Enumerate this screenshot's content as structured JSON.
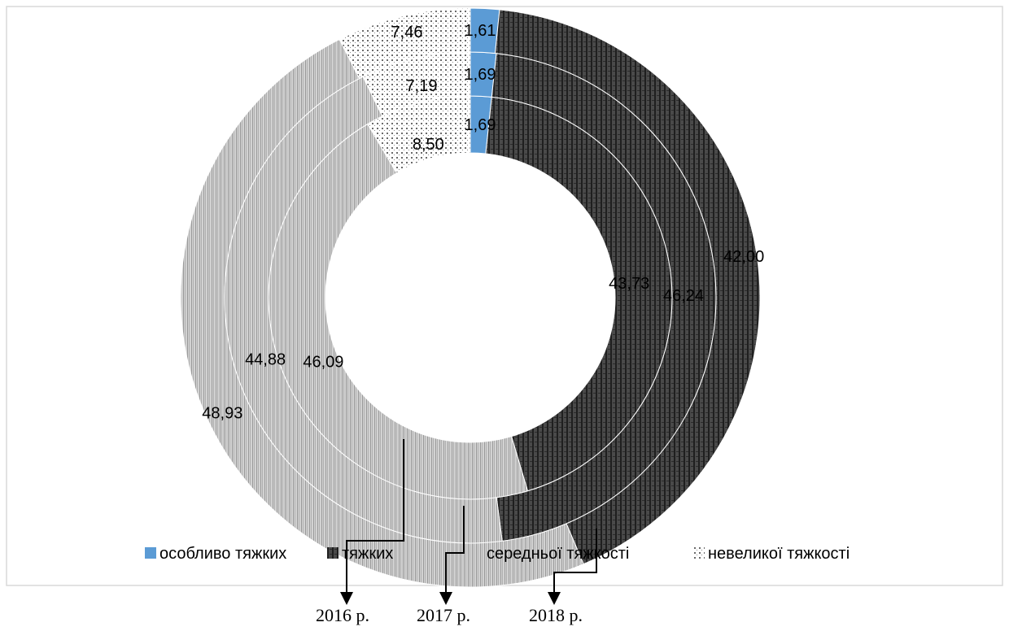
{
  "chart_data": {
    "type": "pie",
    "style": "nested-donut",
    "categories": [
      "особливо тяжких",
      "тяжких",
      "середньої тяжкості",
      "невеликої тяжкості"
    ],
    "colors": [
      "#5b9bd5",
      "#3a3a3a",
      "#c4c4c4",
      "#e8e8e8"
    ],
    "series": [
      {
        "name": "2016 р.",
        "values": [
          1.69,
          43.73,
          46.09,
          8.5
        ],
        "labels": [
          "1,69",
          "43,73",
          "46,09",
          "8,50"
        ]
      },
      {
        "name": "2017 р.",
        "values": [
          1.69,
          46.24,
          44.88,
          7.19
        ],
        "labels": [
          "1,69",
          "46,24",
          "44,88",
          "7,19"
        ]
      },
      {
        "name": "2018 р.",
        "values": [
          1.61,
          42.0,
          48.93,
          7.46
        ],
        "labels": [
          "1,61",
          "42,00",
          "48,93",
          "7,46"
        ]
      }
    ],
    "legend_position": "bottom"
  }
}
